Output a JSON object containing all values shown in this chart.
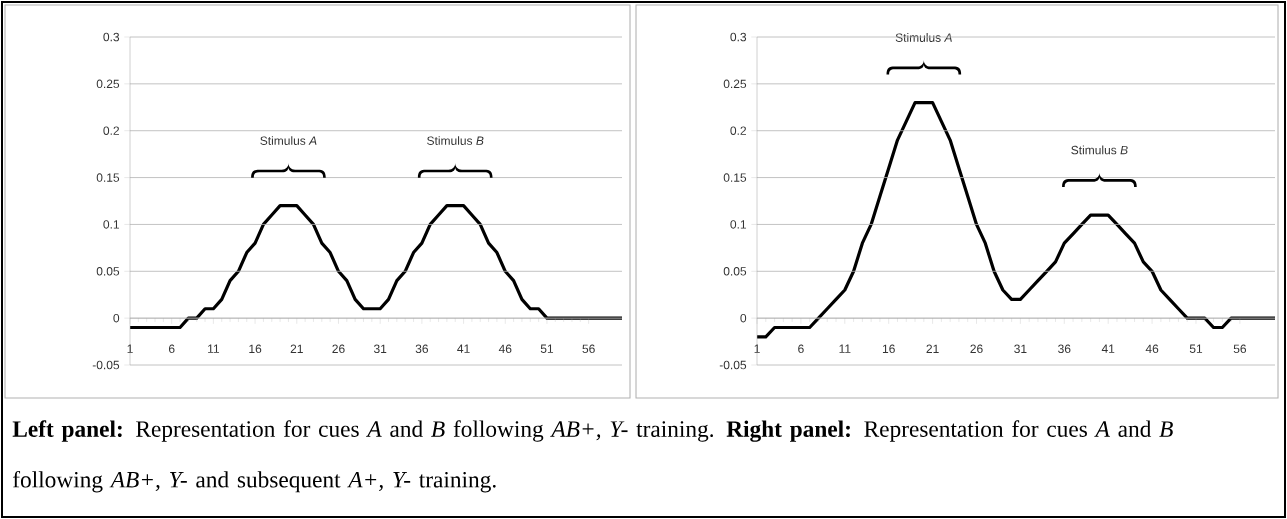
{
  "chart_data": [
    {
      "type": "line",
      "x": [
        1,
        2,
        3,
        4,
        5,
        6,
        7,
        8,
        9,
        10,
        11,
        12,
        13,
        14,
        15,
        16,
        17,
        18,
        19,
        20,
        21,
        22,
        23,
        24,
        25,
        26,
        27,
        28,
        29,
        30,
        31,
        32,
        33,
        34,
        35,
        36,
        37,
        38,
        39,
        40,
        41,
        42,
        43,
        44,
        45,
        46,
        47,
        48,
        49,
        50,
        51,
        52,
        53,
        54,
        55,
        56,
        57,
        58,
        59,
        60
      ],
      "series": [
        {
          "color": "#000000",
          "values": [
            -0.01,
            -0.01,
            -0.01,
            -0.01,
            -0.01,
            -0.01,
            -0.01,
            0,
            0,
            0.01,
            0.01,
            0.02,
            0.04,
            0.05,
            0.07,
            0.08,
            0.1,
            0.11,
            0.12,
            0.12,
            0.12,
            0.11,
            0.1,
            0.08,
            0.07,
            0.05,
            0.04,
            0.02,
            0.01,
            0.01,
            0.01,
            0.02,
            0.04,
            0.05,
            0.07,
            0.08,
            0.1,
            0.11,
            0.12,
            0.12,
            0.12,
            0.11,
            0.1,
            0.08,
            0.07,
            0.05,
            0.04,
            0.02,
            0.01,
            0.01,
            0,
            0,
            0,
            0,
            0,
            0,
            0,
            0,
            0,
            0
          ]
        }
      ],
      "xlim": [
        1,
        60
      ],
      "xticks": [
        1,
        6,
        11,
        16,
        21,
        26,
        31,
        36,
        41,
        46,
        51,
        56
      ],
      "ylim": [
        -0.05,
        0.3
      ],
      "yticks": [
        -0.05,
        0,
        0.05,
        0.1,
        0.15,
        0.2,
        0.25,
        0.3
      ],
      "grid": "y",
      "marker": "none",
      "line_style": "solid",
      "annotations": [
        "Stimulus *A*",
        "Stimulus *B*"
      ]
    },
    {
      "type": "line",
      "x": [
        1,
        2,
        3,
        4,
        5,
        6,
        7,
        8,
        9,
        10,
        11,
        12,
        13,
        14,
        15,
        16,
        17,
        18,
        19,
        20,
        21,
        22,
        23,
        24,
        25,
        26,
        27,
        28,
        29,
        30,
        31,
        32,
        33,
        34,
        35,
        36,
        37,
        38,
        39,
        40,
        41,
        42,
        43,
        44,
        45,
        46,
        47,
        48,
        49,
        50,
        51,
        52,
        53,
        54,
        55,
        56,
        57,
        58,
        59,
        60
      ],
      "series": [
        {
          "color": "#000000",
          "values": [
            -0.02,
            -0.02,
            -0.01,
            -0.01,
            -0.01,
            -0.01,
            -0.01,
            0,
            0.01,
            0.02,
            0.03,
            0.05,
            0.08,
            0.1,
            0.13,
            0.16,
            0.19,
            0.21,
            0.23,
            0.23,
            0.23,
            0.21,
            0.19,
            0.16,
            0.13,
            0.1,
            0.08,
            0.05,
            0.03,
            0.02,
            0.02,
            0.03,
            0.04,
            0.05,
            0.06,
            0.08,
            0.09,
            0.1,
            0.11,
            0.11,
            0.11,
            0.1,
            0.09,
            0.08,
            0.06,
            0.05,
            0.03,
            0.02,
            0.01,
            0,
            0,
            0,
            -0.01,
            -0.01,
            0,
            0,
            0,
            0,
            0,
            0
          ]
        }
      ],
      "xlim": [
        1,
        60
      ],
      "xticks": [
        1,
        6,
        11,
        16,
        21,
        26,
        31,
        36,
        41,
        46,
        51,
        56
      ],
      "ylim": [
        -0.05,
        0.3
      ],
      "yticks": [
        -0.05,
        0,
        0.05,
        0.1,
        0.15,
        0.2,
        0.25,
        0.3
      ],
      "grid": "y",
      "marker": "none",
      "line_style": "solid",
      "annotations": [
        "Stimulus *A*",
        "Stimulus *B*",
        "**Left panel:** Representation for cues *A* and *B* following *AB+, Y-* training. **Right panel:** Representation for cues *A* and *B* following *AB+, Y-* and subsequent *A+, Y-* training."
      ]
    }
  ]
}
